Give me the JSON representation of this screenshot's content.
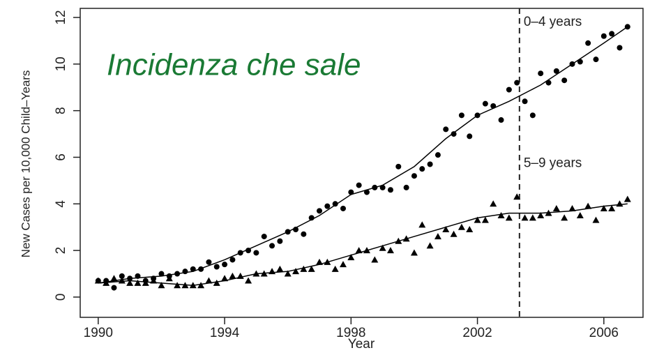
{
  "chart_data": {
    "type": "scatter",
    "title": "Incidenza che sale",
    "x_label": "Year",
    "y_label": "New Cases per 10,000 Child–Years",
    "xlim": [
      1989.43,
      2007.24
    ],
    "ylim": [
      -0.87,
      12.39
    ],
    "xticks": [
      1990,
      1994,
      1998,
      2002,
      2006
    ],
    "yticks": [
      0,
      2,
      4,
      6,
      8,
      10,
      12
    ],
    "vline": 2003.33,
    "series": [
      {
        "name": "0–4 years",
        "color": "#000000",
        "marker": "circle",
        "x": [
          1990,
          1990.25,
          1990.5,
          1990.75,
          1991,
          1991.25,
          1991.5,
          1991.75,
          1992,
          1992.25,
          1992.5,
          1992.75,
          1993,
          1993.25,
          1993.5,
          1993.75,
          1994,
          1994.25,
          1994.5,
          1994.75,
          1995,
          1995.25,
          1995.5,
          1995.75,
          1996,
          1996.25,
          1996.5,
          1996.75,
          1997,
          1997.25,
          1997.5,
          1997.75,
          1998,
          1998.25,
          1998.5,
          1998.75,
          1999,
          1999.25,
          1999.5,
          1999.75,
          2000,
          2000.25,
          2000.5,
          2000.75,
          2001,
          2001.25,
          2001.5,
          2001.75,
          2002,
          2002.25,
          2002.5,
          2002.75,
          2003,
          2003.25,
          2003.5,
          2003.75,
          2004,
          2004.25,
          2004.5,
          2004.75,
          2005,
          2005.25,
          2005.5,
          2005.75,
          2006,
          2006.25,
          2006.5,
          2006.75
        ],
        "values": [
          0.7,
          0.7,
          0.4,
          0.9,
          0.8,
          0.9,
          0.7,
          0.8,
          1.0,
          0.9,
          1.0,
          1.1,
          1.2,
          1.2,
          1.5,
          1.3,
          1.4,
          1.6,
          1.9,
          2.0,
          1.9,
          2.6,
          2.2,
          2.4,
          2.8,
          2.9,
          2.7,
          3.4,
          3.7,
          3.9,
          4.0,
          3.8,
          4.5,
          4.8,
          4.5,
          4.7,
          4.7,
          4.6,
          5.6,
          4.7,
          5.2,
          5.5,
          5.7,
          6.1,
          7.2,
          7.0,
          7.8,
          6.9,
          7.8,
          8.3,
          8.2,
          7.6,
          8.9,
          9.2,
          8.4,
          7.8,
          9.6,
          9.2,
          9.7,
          9.3,
          10.0,
          10.1,
          10.9,
          10.2,
          11.2,
          11.3,
          10.7,
          11.6
        ],
        "fit_x": [
          1990,
          1991,
          1992,
          1993,
          1994,
          1995,
          1996,
          1997,
          1998,
          1999,
          2000,
          2001,
          2002,
          2003,
          2004,
          2005,
          2006,
          2006.75
        ],
        "fit_values": [
          0.6,
          0.8,
          0.9,
          1.1,
          1.6,
          2.2,
          2.8,
          3.5,
          4.4,
          4.8,
          5.6,
          6.8,
          7.8,
          8.4,
          9.1,
          10.0,
          10.9,
          11.6
        ]
      },
      {
        "name": "5–9 years",
        "color": "#000000",
        "marker": "triangle",
        "x": [
          1990,
          1990.25,
          1990.5,
          1990.75,
          1991,
          1991.25,
          1991.5,
          1991.75,
          1992,
          1992.25,
          1992.5,
          1992.75,
          1993,
          1993.25,
          1993.5,
          1993.75,
          1994,
          1994.25,
          1994.5,
          1994.75,
          1995,
          1995.25,
          1995.5,
          1995.75,
          1996,
          1996.25,
          1996.5,
          1996.75,
          1997,
          1997.25,
          1997.5,
          1997.75,
          1998,
          1998.25,
          1998.5,
          1998.75,
          1999,
          1999.25,
          1999.5,
          1999.75,
          2000,
          2000.25,
          2000.5,
          2000.75,
          2001,
          2001.25,
          2001.5,
          2001.75,
          2002,
          2002.25,
          2002.5,
          2002.75,
          2003,
          2003.25,
          2003.5,
          2003.75,
          2004,
          2004.25,
          2004.5,
          2004.75,
          2005,
          2005.25,
          2005.5,
          2005.75,
          2006,
          2006.25,
          2006.5,
          2006.75
        ],
        "values": [
          0.7,
          0.6,
          0.8,
          0.7,
          0.6,
          0.6,
          0.6,
          0.7,
          0.5,
          0.8,
          0.5,
          0.5,
          0.5,
          0.5,
          0.7,
          0.6,
          0.8,
          0.9,
          0.9,
          0.7,
          1.0,
          1.0,
          1.1,
          1.2,
          1.0,
          1.1,
          1.2,
          1.2,
          1.5,
          1.5,
          1.2,
          1.4,
          1.7,
          2.0,
          2.0,
          1.6,
          2.1,
          2.0,
          2.4,
          2.5,
          1.9,
          3.1,
          2.2,
          2.6,
          2.9,
          2.7,
          3.0,
          2.9,
          3.3,
          3.3,
          4.0,
          3.5,
          3.4,
          4.3,
          3.4,
          3.4,
          3.5,
          3.6,
          3.8,
          3.4,
          3.8,
          3.5,
          3.9,
          3.3,
          3.8,
          3.8,
          4.0,
          4.2
        ],
        "fit_x": [
          1990,
          1991,
          1992,
          1993,
          1994,
          1995,
          1996,
          1997,
          1998,
          1999,
          2000,
          2001,
          2002,
          2003,
          2004,
          2005,
          2006,
          2006.75
        ],
        "fit_values": [
          0.6,
          0.7,
          0.6,
          0.5,
          0.7,
          1.0,
          1.1,
          1.4,
          1.8,
          2.2,
          2.6,
          3.0,
          3.4,
          3.6,
          3.6,
          3.7,
          3.9,
          4.0
        ]
      }
    ]
  }
}
